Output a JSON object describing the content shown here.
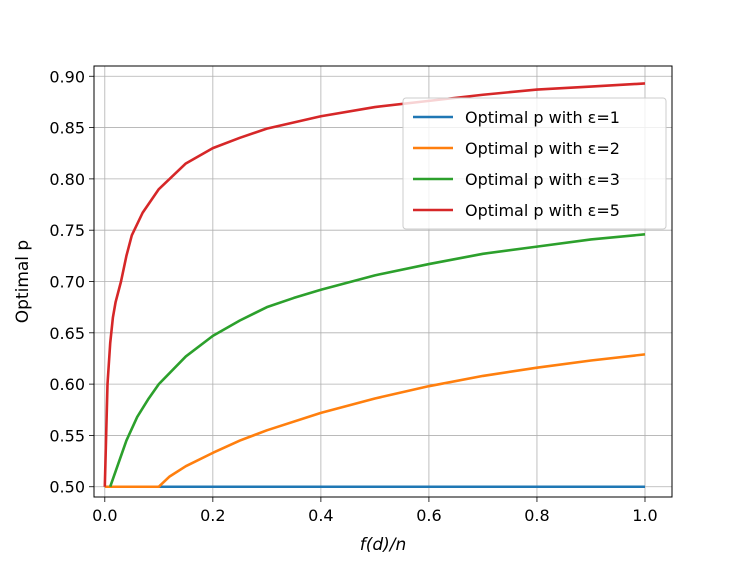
{
  "chart_data": {
    "type": "line",
    "title": "",
    "xlabel": "f(d)/n",
    "ylabel": "Optimal p",
    "xlim": [
      -0.02,
      1.05
    ],
    "ylim": [
      0.49,
      0.91
    ],
    "xticks": [
      "0.0",
      "0.2",
      "0.4",
      "0.6",
      "0.8",
      "1.0"
    ],
    "yticks": [
      "0.50",
      "0.55",
      "0.60",
      "0.65",
      "0.70",
      "0.75",
      "0.80",
      "0.85",
      "0.90"
    ],
    "grid": true,
    "legend_position": "top-right",
    "series": [
      {
        "name": "Optimal p with ε=1",
        "color": "#1f77b4",
        "points": [
          [
            0.0,
            0.5
          ],
          [
            1.0,
            0.5
          ]
        ]
      },
      {
        "name": "Optimal p with ε=2",
        "color": "#ff7f0e",
        "points": [
          [
            0.0,
            0.5
          ],
          [
            0.1,
            0.5
          ],
          [
            0.12,
            0.51
          ],
          [
            0.15,
            0.52
          ],
          [
            0.2,
            0.533
          ],
          [
            0.25,
            0.545
          ],
          [
            0.3,
            0.555
          ],
          [
            0.4,
            0.572
          ],
          [
            0.5,
            0.586
          ],
          [
            0.6,
            0.598
          ],
          [
            0.7,
            0.608
          ],
          [
            0.8,
            0.616
          ],
          [
            0.9,
            0.623
          ],
          [
            1.0,
            0.629
          ]
        ]
      },
      {
        "name": "Optimal p with ε=3",
        "color": "#2ca02c",
        "points": [
          [
            0.01,
            0.5
          ],
          [
            0.02,
            0.515
          ],
          [
            0.04,
            0.545
          ],
          [
            0.06,
            0.568
          ],
          [
            0.08,
            0.585
          ],
          [
            0.1,
            0.6
          ],
          [
            0.15,
            0.627
          ],
          [
            0.2,
            0.647
          ],
          [
            0.25,
            0.662
          ],
          [
            0.3,
            0.675
          ],
          [
            0.35,
            0.684
          ],
          [
            0.4,
            0.692
          ],
          [
            0.5,
            0.706
          ],
          [
            0.6,
            0.717
          ],
          [
            0.7,
            0.727
          ],
          [
            0.8,
            0.734
          ],
          [
            0.9,
            0.741
          ],
          [
            1.0,
            0.746
          ]
        ]
      },
      {
        "name": "Optimal p with ε=5",
        "color": "#d62728",
        "points": [
          [
            0.0,
            0.5
          ],
          [
            0.005,
            0.6
          ],
          [
            0.01,
            0.64
          ],
          [
            0.015,
            0.665
          ],
          [
            0.02,
            0.68
          ],
          [
            0.03,
            0.7
          ],
          [
            0.04,
            0.725
          ],
          [
            0.05,
            0.745
          ],
          [
            0.07,
            0.767
          ],
          [
            0.1,
            0.79
          ],
          [
            0.15,
            0.815
          ],
          [
            0.2,
            0.83
          ],
          [
            0.25,
            0.84
          ],
          [
            0.3,
            0.849
          ],
          [
            0.4,
            0.861
          ],
          [
            0.5,
            0.87
          ],
          [
            0.6,
            0.876
          ],
          [
            0.7,
            0.882
          ],
          [
            0.8,
            0.887
          ],
          [
            0.9,
            0.89
          ],
          [
            1.0,
            0.893
          ]
        ]
      }
    ]
  }
}
